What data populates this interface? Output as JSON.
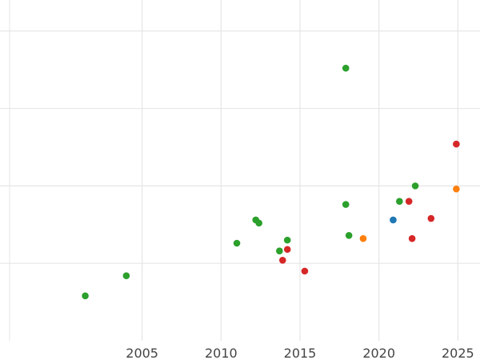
{
  "chart_data": {
    "type": "scatter",
    "title": "",
    "xlabel": "",
    "ylabel": "",
    "xlim": [
      1996.0,
      2026.4
    ],
    "ylim": [
      0,
      220
    ],
    "grid": true,
    "x_ticks": [
      2005,
      2010,
      2015,
      2020,
      2025
    ],
    "x_tick_labels": [
      "2005",
      "2010",
      "2015",
      "2020",
      "2025"
    ],
    "y_gridlines": [
      50,
      100,
      150,
      200
    ],
    "series": [
      {
        "color": "#2ca02c",
        "points": [
          {
            "x": 2001.4,
            "y": 29
          },
          {
            "x": 2004.0,
            "y": 42
          },
          {
            "x": 2011.0,
            "y": 63
          },
          {
            "x": 2012.2,
            "y": 78
          },
          {
            "x": 2012.4,
            "y": 76
          },
          {
            "x": 2013.7,
            "y": 58
          },
          {
            "x": 2014.2,
            "y": 65
          },
          {
            "x": 2017.9,
            "y": 176
          },
          {
            "x": 2017.9,
            "y": 88
          },
          {
            "x": 2018.1,
            "y": 68
          },
          {
            "x": 2021.3,
            "y": 90
          },
          {
            "x": 2022.3,
            "y": 100
          }
        ]
      },
      {
        "color": "#d62728",
        "points": [
          {
            "x": 2013.9,
            "y": 52
          },
          {
            "x": 2014.2,
            "y": 59
          },
          {
            "x": 2015.3,
            "y": 45
          },
          {
            "x": 2021.9,
            "y": 90
          },
          {
            "x": 2022.1,
            "y": 66
          },
          {
            "x": 2023.3,
            "y": 79
          },
          {
            "x": 2024.9,
            "y": 127
          }
        ]
      },
      {
        "color": "#ff7f0e",
        "points": [
          {
            "x": 2019.0,
            "y": 66
          },
          {
            "x": 2024.9,
            "y": 98
          }
        ]
      },
      {
        "color": "#1f77b4",
        "points": [
          {
            "x": 2020.9,
            "y": 78
          }
        ]
      }
    ]
  }
}
